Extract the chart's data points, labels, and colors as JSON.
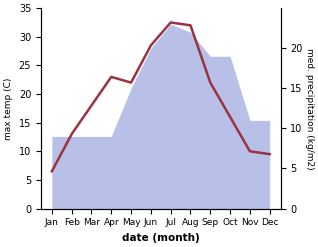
{
  "months": [
    "Jan",
    "Feb",
    "Mar",
    "Apr",
    "May",
    "Jun",
    "Jul",
    "Aug",
    "Sep",
    "Oct",
    "Nov",
    "Dec"
  ],
  "temperature": [
    6.5,
    13.0,
    18.0,
    23.0,
    22.0,
    28.5,
    32.5,
    32.0,
    22.0,
    16.0,
    10.0,
    9.5
  ],
  "precipitation": [
    9.0,
    9.0,
    9.0,
    9.0,
    15.0,
    20.0,
    23.0,
    22.0,
    19.0,
    19.0,
    11.0,
    11.0
  ],
  "temp_color": "#993344",
  "precip_fill_color": "#b8c0e8",
  "temp_ylim": [
    0,
    35
  ],
  "precip_ylim": [
    0,
    25
  ],
  "temp_yticks": [
    0,
    5,
    10,
    15,
    20,
    25,
    30,
    35
  ],
  "precip_yticks": [
    0,
    5,
    10,
    15,
    20
  ],
  "xlabel": "date (month)",
  "ylabel_left": "max temp (C)",
  "ylabel_right": "med. precipitation (kg/m2)",
  "bg_color": "#ffffff",
  "fig_width": 3.18,
  "fig_height": 2.47,
  "dpi": 100
}
